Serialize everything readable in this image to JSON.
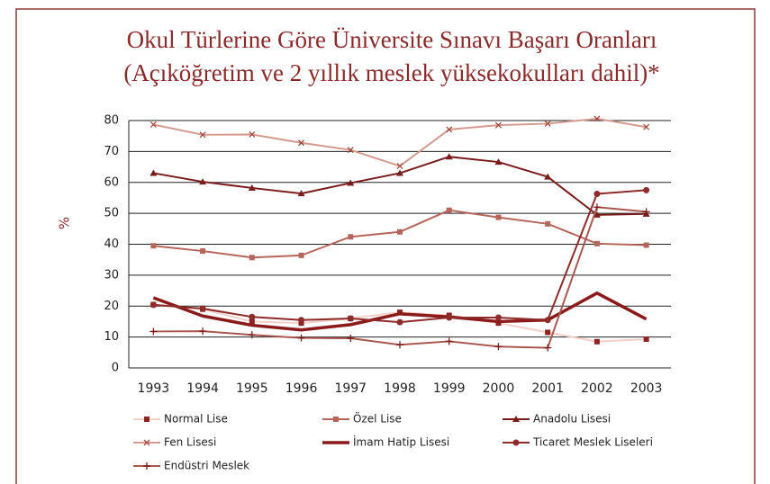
{
  "chart_data": {
    "type": "line",
    "title": [
      "Okul Türlerine Göre Üniversite Sınavı Başarı Oranları",
      "(Açıköğretim ve 2 yıllık meslek yüksekokulları dahil)*"
    ],
    "y_label": "%",
    "categories": [
      "1993",
      "1994",
      "1995",
      "1996",
      "1997",
      "1998",
      "1999",
      "2000",
      "2001",
      "2002",
      "2003"
    ],
    "ylim": [
      0,
      80
    ],
    "yticks": [
      0,
      10,
      20,
      30,
      40,
      50,
      60,
      70,
      80
    ],
    "grid": true,
    "series": [
      {
        "name": "Normal Lise",
        "color": "#f2cfc7",
        "marker_color": "#8b2323",
        "marker": "square",
        "width": 2,
        "values": [
          20.5,
          19,
          15,
          14.5,
          16,
          18,
          17,
          14.5,
          11.5,
          8.5,
          9.3
        ]
      },
      {
        "name": "Özel Lise",
        "color": "#b5655a",
        "marker_color": "#b5655a",
        "marker": "square",
        "width": 2,
        "values": [
          39.5,
          37.8,
          35.7,
          36.4,
          42.4,
          44,
          51,
          48.7,
          46.6,
          40.2,
          39.7
        ]
      },
      {
        "name": "Anadolu Lisesi",
        "color": "#7a1c1c",
        "marker_color": "#7a1c1c",
        "marker": "triangle",
        "width": 2,
        "values": [
          63,
          60.2,
          58.2,
          56.4,
          59.8,
          63,
          68.3,
          66.6,
          61.8,
          49.5,
          49.8
        ]
      },
      {
        "name": "Fen Lisesi",
        "color": "#d49a8f",
        "marker_color": "#a0463c",
        "marker": "x",
        "width": 2,
        "values": [
          78.7,
          75.4,
          75.5,
          72.8,
          70.5,
          65.3,
          77.1,
          78.5,
          79,
          80.6,
          77.9
        ]
      },
      {
        "name": "İmam Hatip Lisesi",
        "color": "#8b1a1a",
        "marker_color": "#8b1a1a",
        "marker": "none",
        "width": 3.5,
        "values": [
          22.7,
          16.8,
          13.8,
          12.3,
          14,
          17.5,
          16.5,
          15,
          15.5,
          24.2,
          15.8
        ]
      },
      {
        "name": "Ticaret Meslek Liseleri",
        "color": "#8e2b2b",
        "marker_color": "#8e2b2b",
        "marker": "circle",
        "width": 2,
        "values": [
          20.4,
          19.2,
          16.5,
          15.5,
          16,
          14.8,
          16.3,
          16.3,
          15.5,
          56.3,
          57.5
        ]
      },
      {
        "name": "Endüstri Meslek",
        "color": "#a8584e",
        "marker_color": "#7a1c1c",
        "marker": "plus",
        "width": 2,
        "values": [
          11.8,
          11.9,
          10.7,
          9.7,
          9.6,
          7.5,
          8.6,
          6.9,
          6.5,
          52,
          50.5
        ]
      }
    ]
  }
}
